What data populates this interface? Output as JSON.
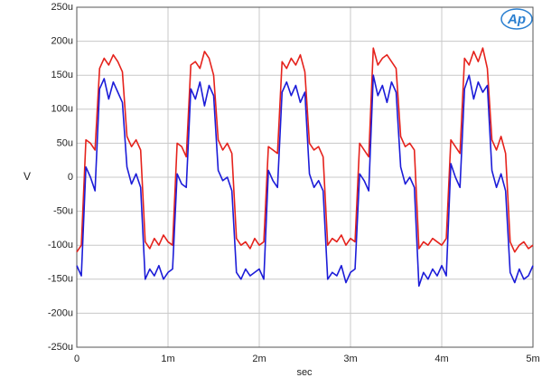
{
  "logo": "Ap",
  "chart_data": {
    "type": "line",
    "xlabel": "sec",
    "ylabel": "V",
    "x": [
      0,
      5e-05,
      0.0001,
      0.00015,
      0.0002,
      0.00025,
      0.0003,
      0.00035,
      0.0004,
      0.00045,
      0.0005,
      0.00055,
      0.0006,
      0.00065,
      0.0007,
      0.00075,
      0.0008,
      0.00085,
      0.0009,
      0.00095,
      0.001,
      0.00105,
      0.0011,
      0.00115,
      0.0012,
      0.00125,
      0.0013,
      0.00135,
      0.0014,
      0.00145,
      0.0015,
      0.00155,
      0.0016,
      0.00165,
      0.0017,
      0.00175,
      0.0018,
      0.00185,
      0.0019,
      0.00195,
      0.002,
      0.00205,
      0.0021,
      0.00215,
      0.0022,
      0.00225,
      0.0023,
      0.00235,
      0.0024,
      0.00245,
      0.0025,
      0.00255,
      0.0026,
      0.00265,
      0.0027,
      0.00275,
      0.0028,
      0.00285,
      0.0029,
      0.00295,
      0.003,
      0.00305,
      0.0031,
      0.00315,
      0.0032,
      0.00325,
      0.0033,
      0.00335,
      0.0034,
      0.00345,
      0.0035,
      0.00355,
      0.0036,
      0.00365,
      0.0037,
      0.00375,
      0.0038,
      0.00385,
      0.0039,
      0.00395,
      0.004,
      0.00405,
      0.0041,
      0.00415,
      0.0042,
      0.00425,
      0.0043,
      0.00435,
      0.0044,
      0.00445,
      0.0045,
      0.00455,
      0.0046,
      0.00465,
      0.0047,
      0.00475,
      0.0048,
      0.00485,
      0.0049,
      0.00495,
      0.005
    ],
    "series": [
      {
        "color": "#e5221c",
        "values": [
          -0.00011,
          -0.0001,
          5.5e-05,
          5e-05,
          4e-05,
          0.00016,
          0.000175,
          0.000165,
          0.00018,
          0.00017,
          0.000155,
          6e-05,
          4.5e-05,
          5.5e-05,
          4e-05,
          -9.5e-05,
          -0.000105,
          -9e-05,
          -0.0001,
          -8.5e-05,
          -9.5e-05,
          -0.0001,
          5e-05,
          4.5e-05,
          3e-05,
          0.000165,
          0.00017,
          0.00016,
          0.000185,
          0.000175,
          0.00015,
          5.5e-05,
          4e-05,
          5e-05,
          3.5e-05,
          -9e-05,
          -0.0001,
          -9.5e-05,
          -0.000105,
          -9e-05,
          -0.0001,
          -9.5e-05,
          4.5e-05,
          4e-05,
          3.5e-05,
          0.00017,
          0.00016,
          0.000175,
          0.000165,
          0.00018,
          0.000155,
          5e-05,
          4e-05,
          4.5e-05,
          3e-05,
          -0.0001,
          -9e-05,
          -9.5e-05,
          -8.5e-05,
          -0.0001,
          -9e-05,
          -9.5e-05,
          5e-05,
          4e-05,
          3e-05,
          0.00019,
          0.000165,
          0.000175,
          0.00018,
          0.00017,
          0.00016,
          6e-05,
          4.5e-05,
          5e-05,
          4e-05,
          -0.000105,
          -9.5e-05,
          -0.0001,
          -9e-05,
          -9.5e-05,
          -0.0001,
          -9e-05,
          5.5e-05,
          4.5e-05,
          3.5e-05,
          0.000175,
          0.000165,
          0.000185,
          0.00017,
          0.00019,
          0.00016,
          5.5e-05,
          4e-05,
          6e-05,
          3.5e-05,
          -9.5e-05,
          -0.00011,
          -0.0001,
          -9.5e-05,
          -0.000105,
          -0.0001
        ]
      },
      {
        "color": "#1c1cd8",
        "values": [
          -0.00013,
          -0.000145,
          1.5e-05,
          0,
          -2e-05,
          0.00013,
          0.000145,
          0.000115,
          0.00014,
          0.000125,
          0.00011,
          1.5e-05,
          -1e-05,
          5e-06,
          -1.5e-05,
          -0.00015,
          -0.000135,
          -0.000145,
          -0.00013,
          -0.00015,
          -0.00014,
          -0.000135,
          5e-06,
          -1e-05,
          -1.5e-05,
          0.00013,
          0.000115,
          0.00014,
          0.000105,
          0.000135,
          0.00012,
          1e-05,
          -5e-06,
          0,
          -2e-05,
          -0.00014,
          -0.00015,
          -0.000135,
          -0.000145,
          -0.00014,
          -0.000135,
          -0.00015,
          1e-05,
          -5e-06,
          -1.5e-05,
          0.000125,
          0.00014,
          0.00012,
          0.000135,
          0.00011,
          0.000125,
          5e-06,
          -1.5e-05,
          -5e-06,
          -2e-05,
          -0.00015,
          -0.00014,
          -0.000145,
          -0.00013,
          -0.000155,
          -0.00014,
          -0.000135,
          5e-06,
          -5e-06,
          -2e-05,
          0.00015,
          0.00012,
          0.000135,
          0.00011,
          0.00014,
          0.000125,
          1.5e-05,
          -1e-05,
          0,
          -1.5e-05,
          -0.00016,
          -0.00014,
          -0.00015,
          -0.000135,
          -0.000145,
          -0.00013,
          -0.000145,
          2e-05,
          0,
          -1.5e-05,
          0.00013,
          0.00015,
          0.000115,
          0.00014,
          0.000125,
          0.000135,
          1e-05,
          -1.5e-05,
          5e-06,
          -2e-05,
          -0.00014,
          -0.000155,
          -0.000135,
          -0.00015,
          -0.000145,
          -0.00013
        ]
      }
    ],
    "xlim": [
      0,
      0.005
    ],
    "xticks": [
      0,
      {
        "value": 0.001,
        "label": "1m"
      },
      {
        "value": 0.002,
        "label": "2m"
      },
      {
        "value": 0.003,
        "label": "3m"
      },
      {
        "value": 0.004,
        "label": "4m"
      },
      {
        "value": 0.005,
        "label": "5m"
      }
    ],
    "ylim": [
      -0.00025,
      0.00025
    ],
    "yticks": [
      {
        "value": -0.00025,
        "label": "-250u"
      },
      {
        "value": -0.0002,
        "label": "-200u"
      },
      {
        "value": -0.00015,
        "label": "-150u"
      },
      {
        "value": -0.0001,
        "label": "-100u"
      },
      {
        "value": -5e-05,
        "label": "-50u"
      },
      0,
      {
        "value": 5e-05,
        "label": "50u"
      },
      {
        "value": 0.0001,
        "label": "100u"
      },
      {
        "value": 0.00015,
        "label": "150u"
      },
      {
        "value": 0.0002,
        "label": "200u"
      },
      {
        "value": 0.00025,
        "label": "250u"
      }
    ],
    "grid": true
  }
}
